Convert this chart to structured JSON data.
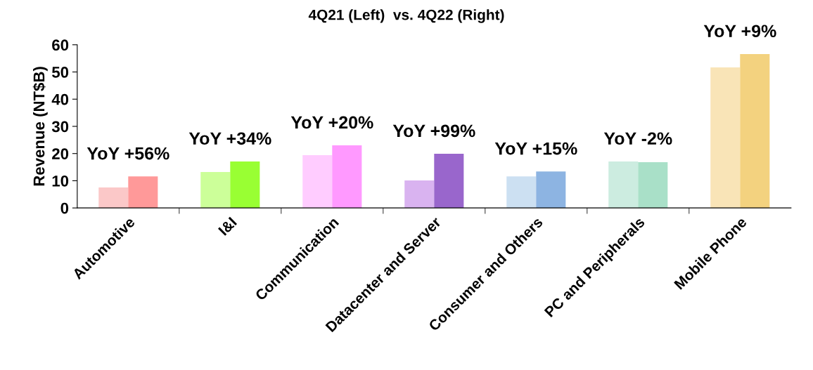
{
  "chart_data": {
    "type": "bar",
    "title": "4Q21 (Left)  vs. 4Q22 (Right)",
    "ylabel": "Revenue (NT$B)",
    "categories": [
      "Automotive",
      "I&I",
      "Communication",
      "Datacenter and Server",
      "Consumer and Others",
      "PC and Peripherals",
      "Mobile Phone"
    ],
    "series": [
      {
        "values": [
          7.5,
          13.2,
          19.4,
          10.1,
          11.6,
          17.1,
          51.7
        ],
        "colors": [
          "#fbc8c8",
          "#ccff99",
          "#ffccff",
          "#d9b3f0",
          "#cce0f2",
          "#ccece0",
          "#f9e4b7"
        ]
      },
      {
        "values": [
          11.6,
          17.1,
          23.0,
          19.9,
          13.4,
          16.8,
          56.6
        ],
        "colors": [
          "#ff9999",
          "#99ff33",
          "#ff99ff",
          "#9966cc",
          "#8db4e2",
          "#a9e0c8",
          "#f3d27f"
        ]
      }
    ],
    "ylim": [
      0,
      60
    ],
    "yticks": [
      0,
      10,
      20,
      30,
      40,
      50,
      60
    ],
    "grid": false,
    "legend": false,
    "annotations": [
      "YoY +56%",
      "YoY +34%",
      "YoY +20%",
      "YoY +99%",
      "YoY +15%",
      "YoY -2%",
      "YoY +9%"
    ]
  }
}
